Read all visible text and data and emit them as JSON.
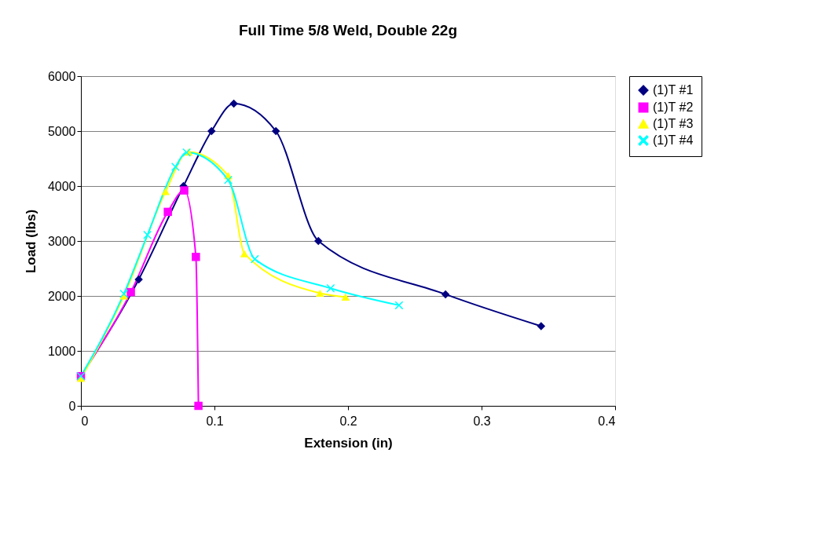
{
  "chart_data": {
    "type": "line",
    "title": "Full Time 5/8 Weld, Double 22g",
    "xlabel": "Extension (in)",
    "ylabel": "Load (lbs)",
    "xlim": [
      0,
      0.4
    ],
    "xticks": [
      0,
      0.1,
      0.2,
      0.3,
      0.4
    ],
    "ylim": [
      0,
      6000
    ],
    "yticks": [
      0,
      1000,
      2000,
      3000,
      4000,
      5000,
      6000
    ],
    "grid": "y",
    "legend": "right",
    "line_style": "solid",
    "series": [
      {
        "name": "(1)T #1",
        "color": "#000080",
        "marker": "diamond",
        "x": [
          0,
          0.0433,
          0.0768,
          0.0978,
          0.1145,
          0.146,
          0.1778,
          0.273,
          0.3446
        ],
        "values": [
          540,
          2300,
          4000,
          5000,
          5500,
          5000,
          3000,
          2030,
          1450
        ]
      },
      {
        "name": "(1)T #2",
        "color": "#ff00ff",
        "marker": "square",
        "x": [
          0,
          0.0374,
          0.0651,
          0.0774,
          0.0861,
          0.088
        ],
        "values": [
          540,
          2070,
          3530,
          3920,
          2710,
          0
        ]
      },
      {
        "name": "(1)T #3",
        "color": "#ffff00",
        "marker": "triangle",
        "x": [
          0,
          0.0322,
          0.0634,
          0.0805,
          0.1103,
          0.1224,
          0.179,
          0.1982
        ],
        "values": [
          500,
          2000,
          3900,
          4620,
          4190,
          2770,
          2050,
          1980
        ]
      },
      {
        "name": "(1)T #4",
        "color": "#00ffff",
        "marker": "cross",
        "x": [
          0,
          0.0322,
          0.0498,
          0.0708,
          0.0792,
          0.1103,
          0.1302,
          0.187,
          0.2382
        ],
        "values": [
          540,
          2040,
          3110,
          4350,
          4610,
          4110,
          2670,
          2140,
          1830
        ]
      }
    ]
  }
}
